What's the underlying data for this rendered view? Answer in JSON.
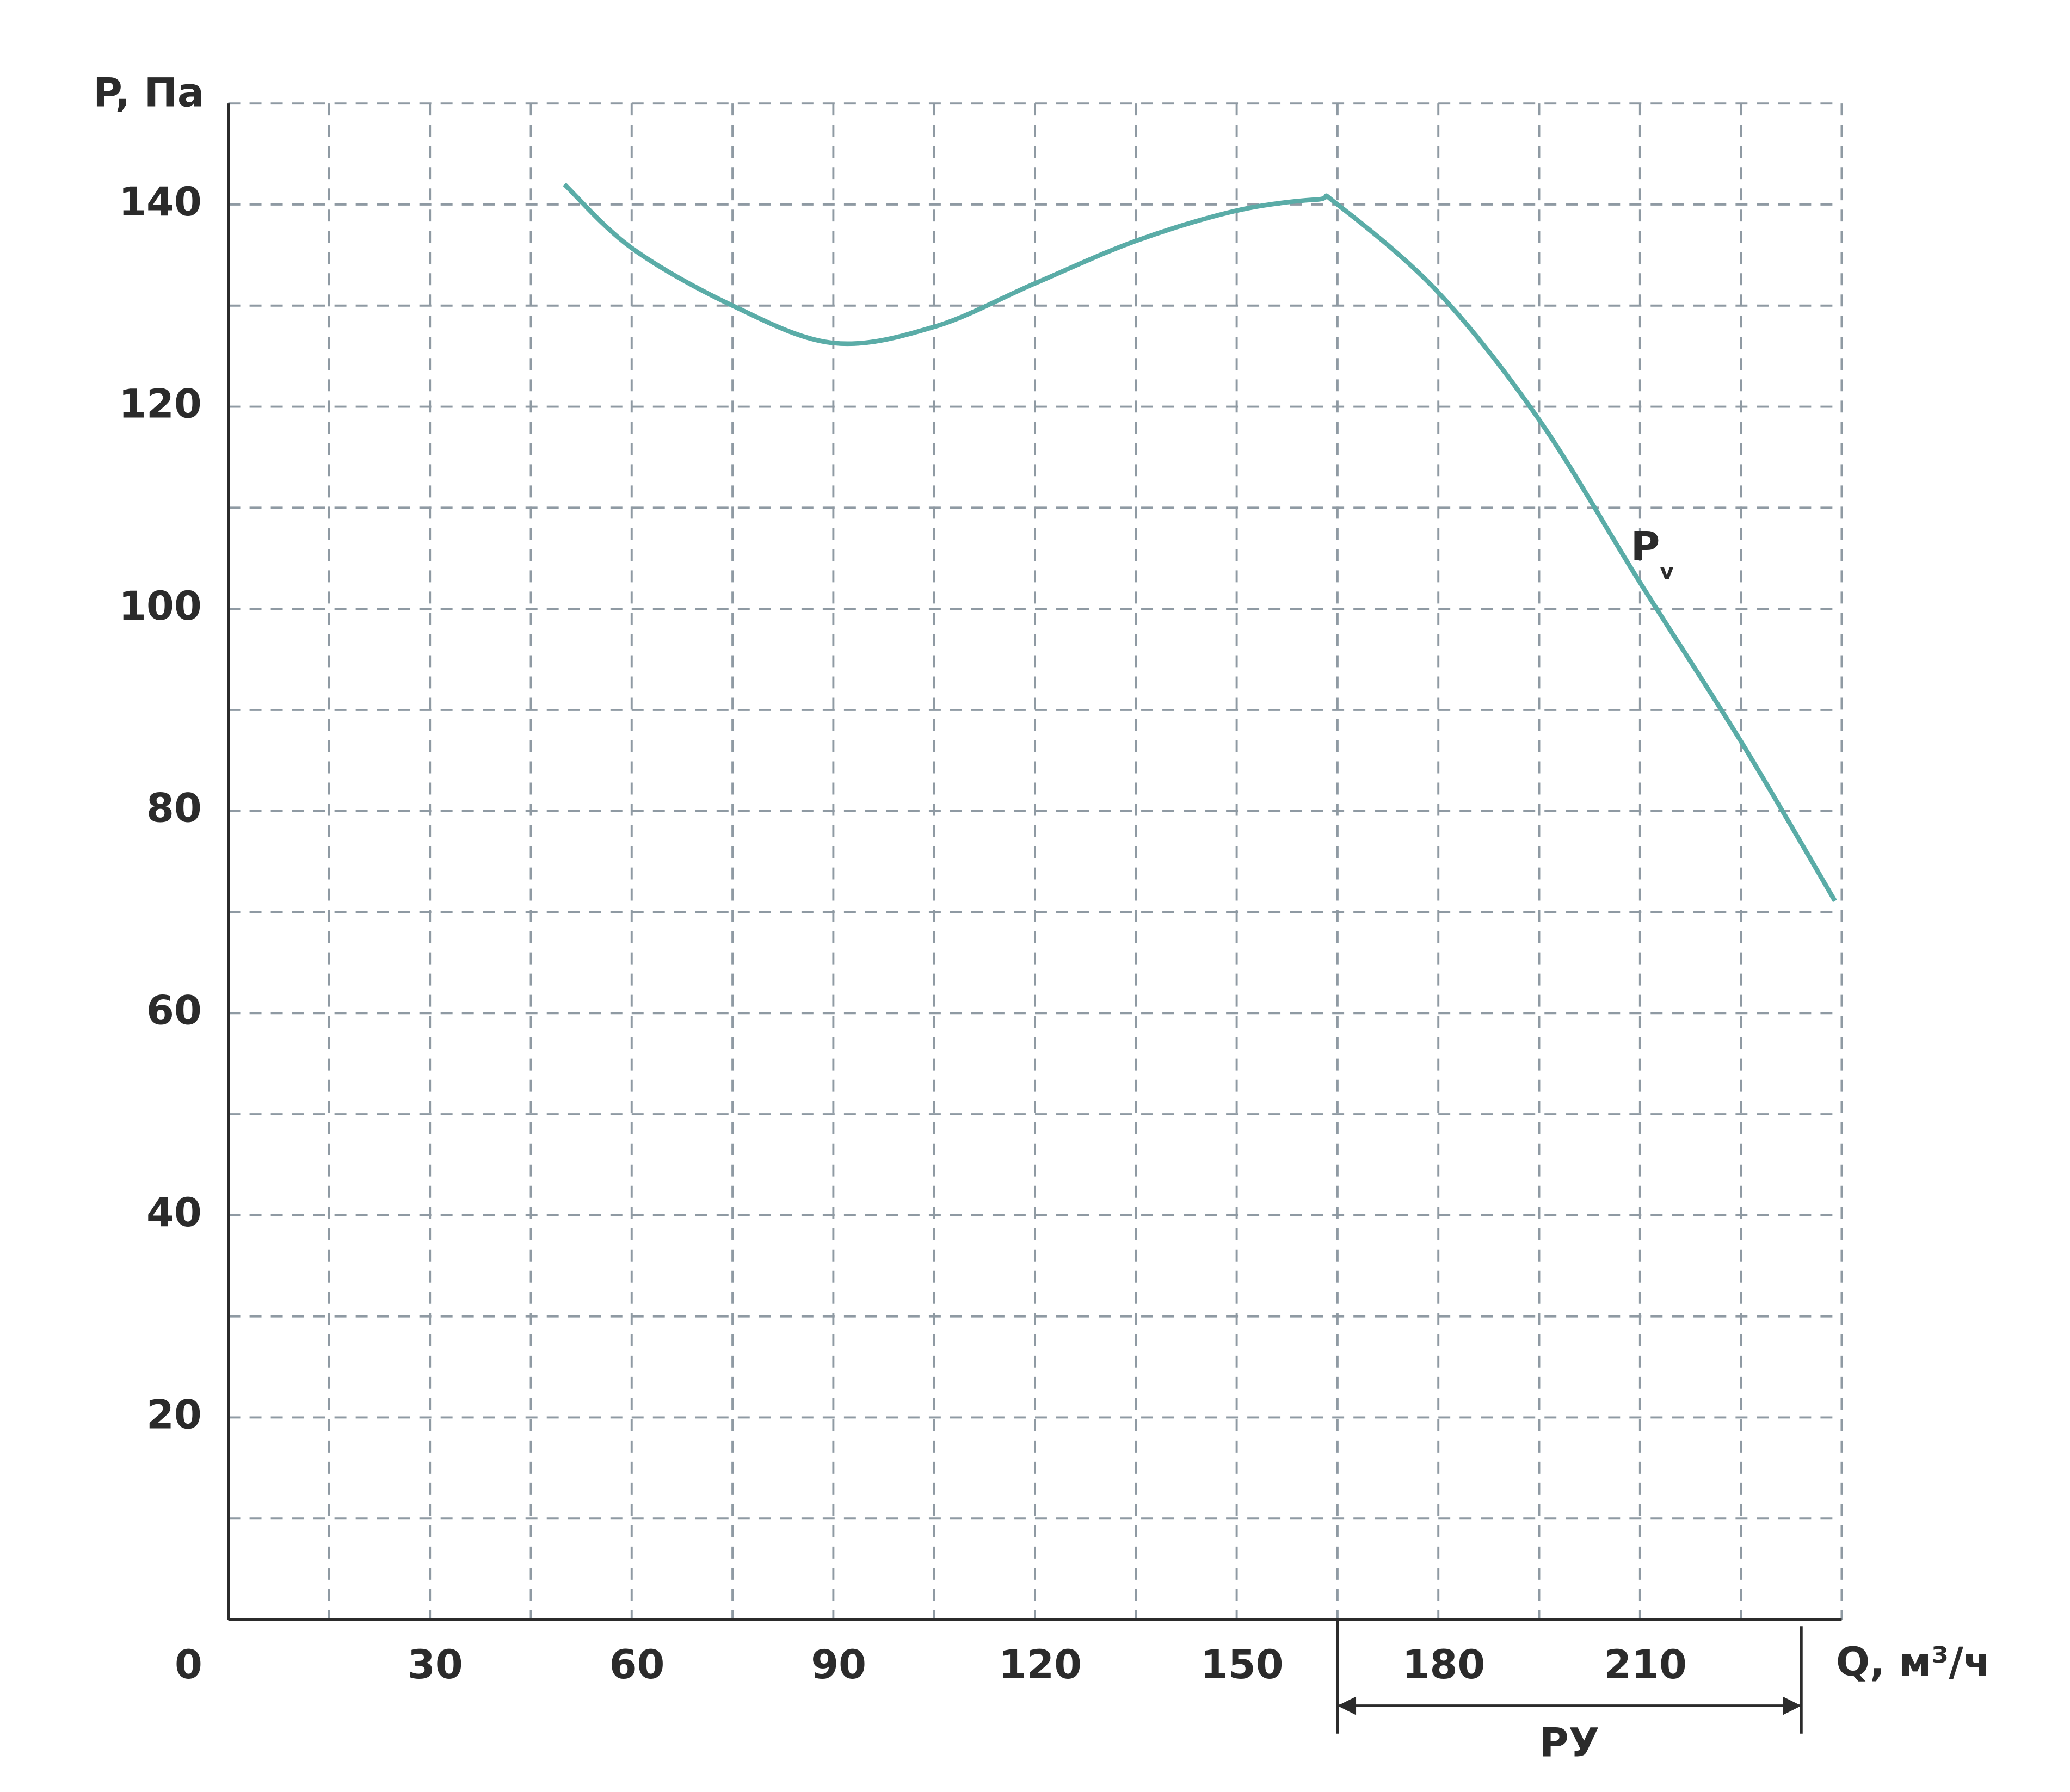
{
  "chart_data": {
    "type": "line",
    "ylabel": "P, Па",
    "xlabel": "Q, м³/ч",
    "xlim": [
      0,
      240
    ],
    "ylim": [
      0,
      150
    ],
    "xticks": [
      0,
      30,
      60,
      90,
      120,
      150,
      180,
      210
    ],
    "yticks": [
      20,
      40,
      60,
      80,
      100,
      120,
      140
    ],
    "xgrid": [
      15,
      30,
      45,
      60,
      75,
      90,
      105,
      120,
      135,
      150,
      165,
      180,
      195,
      210,
      225,
      240
    ],
    "ygrid": [
      10,
      20,
      30,
      40,
      50,
      60,
      70,
      80,
      90,
      100,
      110,
      120,
      130,
      140,
      150
    ],
    "grid": true,
    "x": [
      50,
      60,
      75,
      90,
      105,
      120,
      135,
      150,
      162,
      165,
      180,
      195,
      210,
      225,
      239
    ],
    "series": [
      {
        "name": "P",
        "name_sub": "v",
        "color": "#5aaca7",
        "values": [
          142,
          135.7,
          130,
          126.3,
          127.9,
          132.2,
          136.4,
          139.4,
          140.5,
          140,
          131.3,
          118.7,
          102.6,
          86.9,
          71.1
        ]
      }
    ],
    "range": {
      "label": "РУ",
      "from": 165,
      "to": 234
    }
  }
}
